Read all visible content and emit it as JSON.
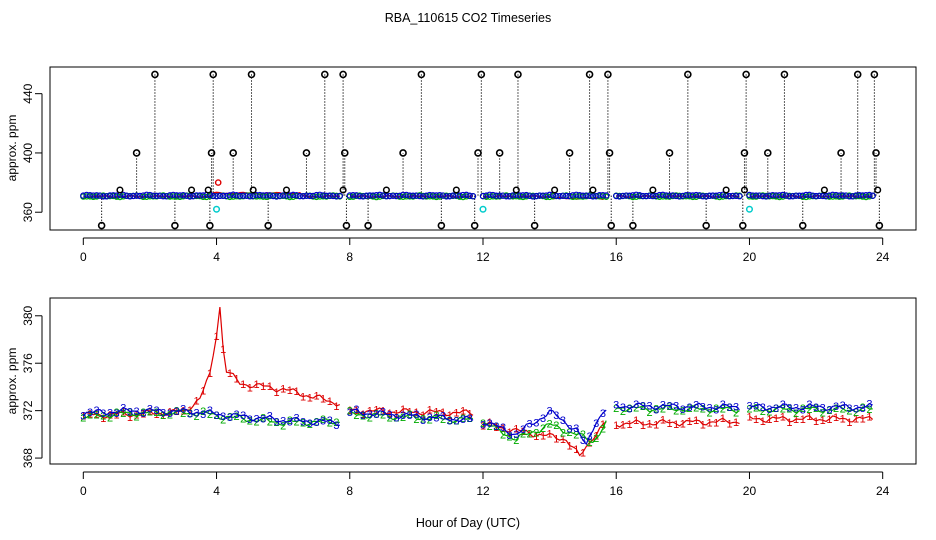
{
  "title": "RBA_110615  CO2 Timeseries",
  "chart_data": [
    {
      "type": "scatter",
      "panel": "top",
      "xlabel": "",
      "ylabel": "approx. ppm",
      "xlim": [
        -1,
        25
      ],
      "ylim": [
        348,
        458
      ],
      "xticks": [
        0,
        4,
        8,
        12,
        16,
        20,
        24
      ],
      "yticks": [
        360,
        400,
        440
      ],
      "spike_high_times": [
        2.15,
        3.9,
        5.05,
        7.25,
        7.8,
        10.15,
        11.95,
        13.05,
        15.2,
        15.75,
        18.15,
        19.9,
        21.05,
        23.25,
        23.75
      ],
      "spike_mid_times": [
        1.6,
        3.85,
        4.5,
        6.7,
        7.85,
        9.6,
        11.85,
        12.5,
        14.6,
        15.8,
        17.6,
        19.85,
        20.55,
        22.75,
        23.8
      ],
      "spike_low_times": [
        0.55,
        2.75,
        3.8,
        5.55,
        7.9,
        8.55,
        10.75,
        11.75,
        13.55,
        15.85,
        16.5,
        18.7,
        19.8,
        21.6,
        23.9
      ],
      "bump_times": [
        1.1,
        3.25,
        3.75,
        5.1,
        6.1,
        7.8,
        9.1,
        11.2,
        13.0,
        14.15,
        15.3,
        17.1,
        19.3,
        19.85,
        22.25,
        23.85
      ],
      "cyan_points": [
        [
          4.0,
          362
        ],
        [
          12.0,
          362
        ],
        [
          20.0,
          362
        ]
      ],
      "segments": [
        [
          0.0,
          7.75
        ],
        [
          8.0,
          11.75
        ],
        [
          12.0,
          15.75
        ],
        [
          16.0,
          19.75
        ],
        [
          20.0,
          23.75
        ]
      ],
      "step_hours": 0.1
    },
    {
      "type": "line",
      "panel": "bottom",
      "xlabel": "Hour of Day (UTC)",
      "ylabel": "approx. ppm",
      "xlim": [
        -1,
        25
      ],
      "ylim": [
        367.5,
        381.5
      ],
      "xticks": [
        0,
        4,
        8,
        12,
        16,
        20,
        24
      ],
      "yticks": [
        368,
        372,
        376,
        380
      ],
      "segments": [
        [
          0.0,
          7.75
        ],
        [
          8.0,
          11.75
        ],
        [
          12.0,
          15.75
        ],
        [
          16.0,
          19.75
        ],
        [
          20.0,
          23.75
        ]
      ],
      "step_hours": 0.1,
      "series": [
        {
          "name": "1",
          "color": "#dd0000",
          "knots": [
            [
              0,
              371.6
            ],
            [
              1.5,
              371.7
            ],
            [
              3.0,
              371.9
            ],
            [
              3.5,
              373.0
            ],
            [
              3.8,
              375.0
            ],
            [
              4.0,
              378.5
            ],
            [
              4.1,
              380.8
            ],
            [
              4.25,
              375.5
            ],
            [
              4.7,
              374.3
            ],
            [
              6.0,
              373.8
            ],
            [
              7.7,
              372.6
            ],
            [
              8.0,
              372.0
            ],
            [
              11.7,
              371.8
            ],
            [
              12.0,
              370.9
            ],
            [
              13.0,
              370.3
            ],
            [
              14.5,
              369.6
            ],
            [
              14.9,
              368.1
            ],
            [
              15.3,
              369.8
            ],
            [
              15.7,
              371.0
            ],
            [
              16.0,
              370.9
            ],
            [
              19.7,
              371.1
            ],
            [
              20.0,
              371.3
            ],
            [
              23.7,
              371.3
            ]
          ]
        },
        {
          "name": "2",
          "color": "#00aa00",
          "knots": [
            [
              0,
              371.5
            ],
            [
              1.5,
              371.8
            ],
            [
              3.5,
              371.8
            ],
            [
              4.2,
              371.5
            ],
            [
              6.0,
              371.0
            ],
            [
              7.7,
              371.1
            ],
            [
              8.0,
              371.7
            ],
            [
              11.7,
              371.2
            ],
            [
              12.0,
              371.0
            ],
            [
              13.0,
              369.6
            ],
            [
              14.0,
              370.8
            ],
            [
              14.8,
              370.0
            ],
            [
              15.3,
              369.4
            ],
            [
              15.7,
              370.9
            ],
            [
              16.0,
              372.2
            ],
            [
              19.7,
              372.1
            ],
            [
              20.0,
              372.1
            ],
            [
              23.7,
              372.1
            ]
          ]
        },
        {
          "name": "3",
          "color": "#0000cc",
          "knots": [
            [
              0,
              371.8
            ],
            [
              1.5,
              372.0
            ],
            [
              3.5,
              371.9
            ],
            [
              4.0,
              371.7
            ],
            [
              6.0,
              371.2
            ],
            [
              7.7,
              371.0
            ],
            [
              8.0,
              371.9
            ],
            [
              11.7,
              371.2
            ],
            [
              12.0,
              371.1
            ],
            [
              13.0,
              370.0
            ],
            [
              14.0,
              371.9
            ],
            [
              14.8,
              370.4
            ],
            [
              15.1,
              369.0
            ],
            [
              15.4,
              371.2
            ],
            [
              15.7,
              372.1
            ],
            [
              16.0,
              372.4
            ],
            [
              19.7,
              372.3
            ],
            [
              20.0,
              372.3
            ],
            [
              23.7,
              372.3
            ]
          ]
        }
      ]
    }
  ]
}
